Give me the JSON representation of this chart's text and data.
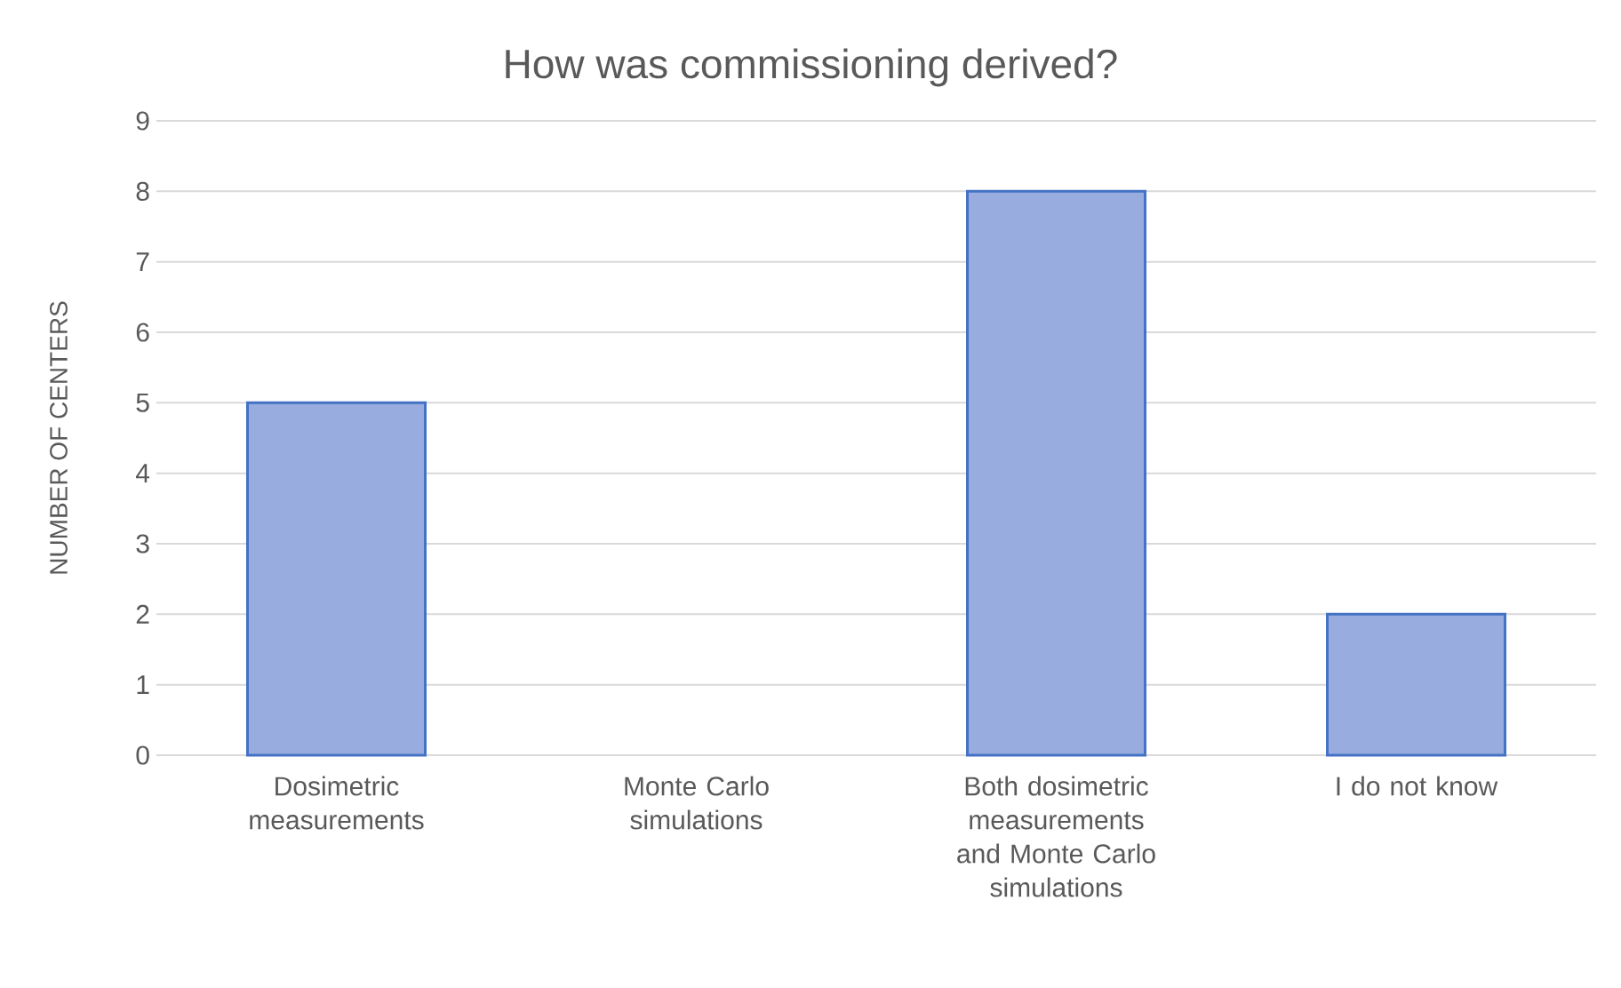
{
  "chart_data": {
    "type": "bar",
    "title": "How was commissioning derived?",
    "ylabel": "NUMBER OF CENTERS",
    "categories": [
      "Dosimetric measurements",
      "Monte Carlo simulations",
      "Both dosimetric measurements and Monte Carlo simulations",
      "I do not know"
    ],
    "values": [
      5,
      0,
      8,
      2
    ],
    "color": "#98acdf",
    "ylim": [
      0,
      9
    ],
    "yticks": [
      0,
      1,
      2,
      3,
      4,
      5,
      6,
      7,
      8,
      9
    ],
    "grid": "y"
  }
}
